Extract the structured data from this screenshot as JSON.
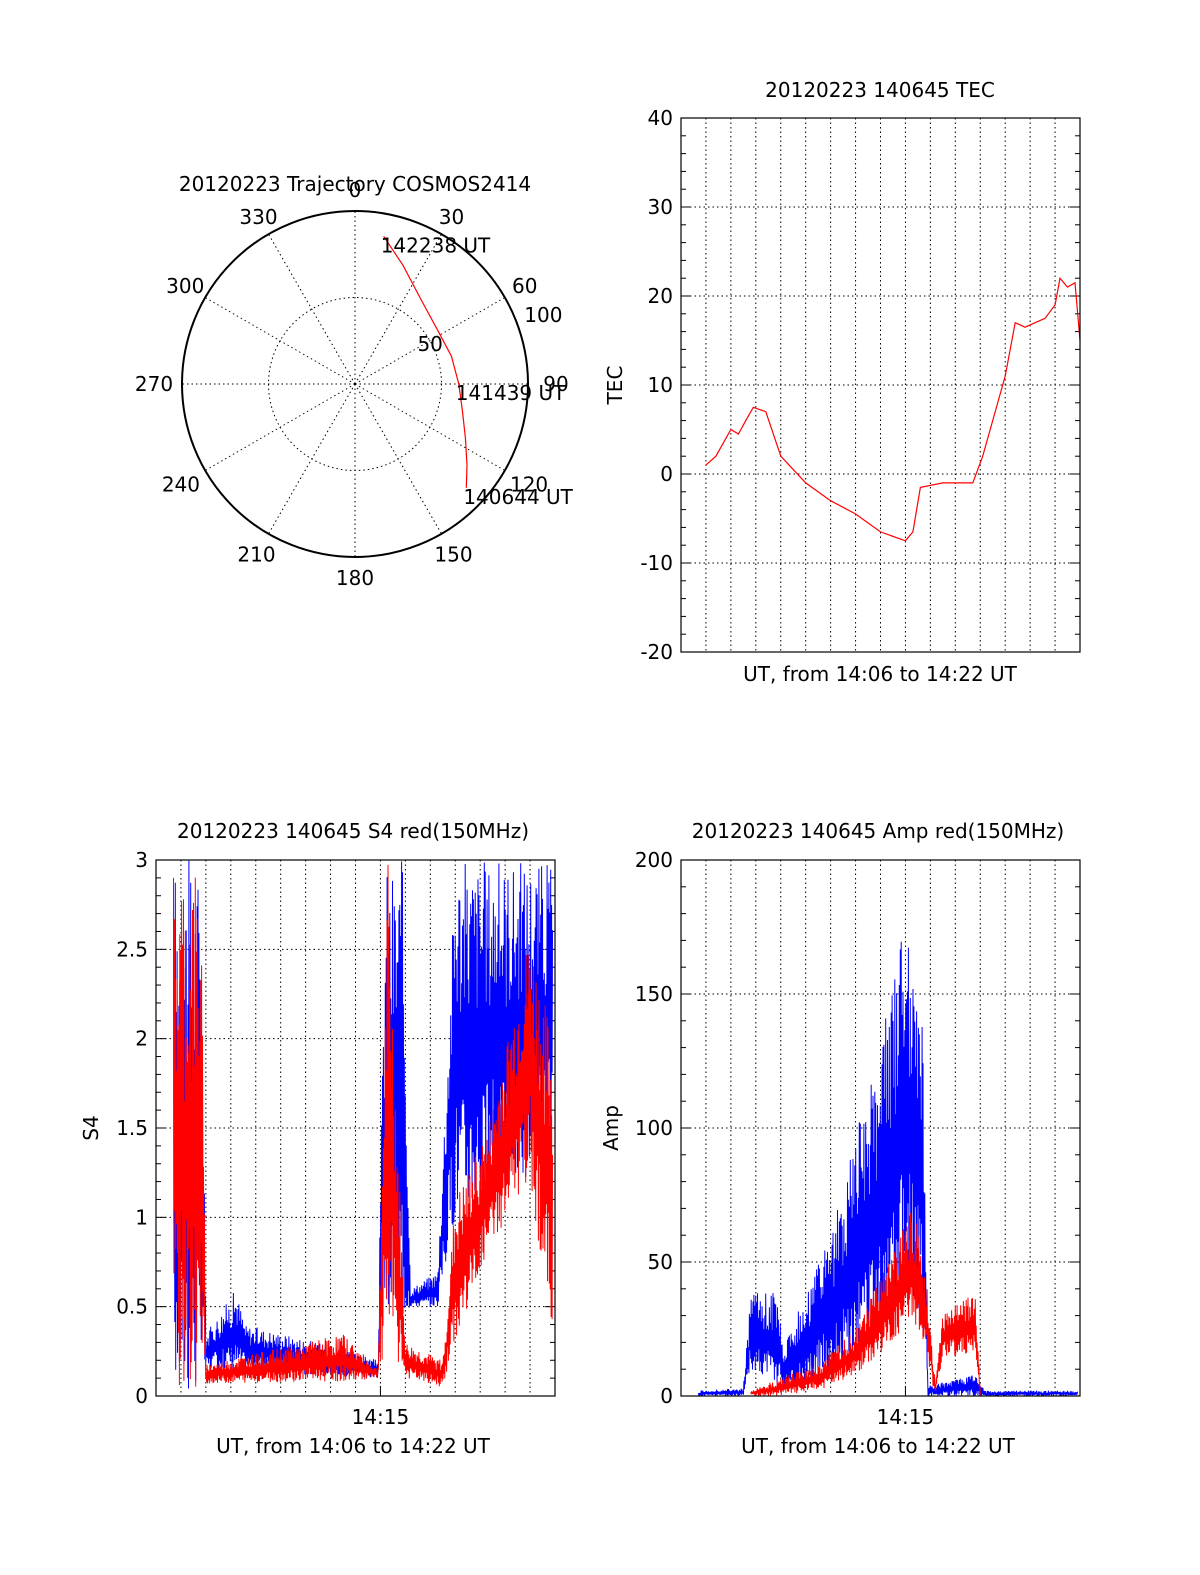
{
  "chart_data": [
    {
      "id": "trajectory",
      "type": "polar",
      "title": "20120223 Trajectory COSMOS2414",
      "azimuth_labels": [
        "0",
        "30",
        "60",
        "90",
        "120",
        "150",
        "180",
        "210",
        "240",
        "270",
        "300",
        "330"
      ],
      "radius_labels": [
        "50",
        "100"
      ],
      "series": [
        {
          "color": "#ff0000",
          "points": [
            {
              "az": 11,
              "r": 87
            },
            {
              "az": 22,
              "r": 74
            },
            {
              "az": 38,
              "r": 62
            },
            {
              "az": 57,
              "r": 57
            },
            {
              "az": 74,
              "r": 58
            },
            {
              "az": 90,
              "r": 60
            },
            {
              "az": 104,
              "r": 64
            },
            {
              "az": 116,
              "r": 71
            },
            {
              "az": 126,
              "r": 80
            },
            {
              "az": 133,
              "r": 88
            }
          ]
        }
      ],
      "annotations": [
        {
          "text": "142238 UT",
          "az": 11,
          "r": 87
        },
        {
          "text": "141439 UT",
          "az": 90,
          "r": 60
        },
        {
          "text": "140644 UT",
          "az": 133,
          "r": 88
        }
      ]
    },
    {
      "id": "tec",
      "type": "line",
      "title": "20120223 140645 TEC",
      "ylabel": "TEC",
      "xlabel": "UT, from 14:06 to 14:22 UT",
      "xlim": [
        0,
        16
      ],
      "ylim": [
        -20,
        40
      ],
      "yticks": [
        "-20",
        "-10",
        "0",
        "10",
        "20",
        "30",
        "40"
      ],
      "series": [
        {
          "color": "#ff0000",
          "x": [
            1,
            1.4,
            1.6,
            2.0,
            2.3,
            2.6,
            2.9,
            3.4,
            4.0,
            5.0,
            6.0,
            7.0,
            8.0,
            9.0,
            9.3,
            9.6,
            10.5,
            11.0,
            11.7,
            12.1,
            12.5,
            13.0,
            13.4,
            13.8,
            14.2,
            14.6,
            15.0,
            15.2,
            15.5,
            15.8,
            16.0
          ],
          "y": [
            1,
            2,
            3,
            5,
            4.5,
            6,
            7.5,
            7,
            2,
            -1,
            -3,
            -4.5,
            -6.5,
            -7.5,
            -6.5,
            -1.5,
            -1,
            -1,
            -1,
            2,
            6,
            11,
            17,
            16.5,
            17,
            17.5,
            19,
            22,
            21,
            21.5,
            15
          ]
        }
      ]
    },
    {
      "id": "s4",
      "type": "line",
      "title": "20120223 140645 S4 red(150MHz)",
      "ylabel": "S4",
      "xlabel": "UT, from 14:06 to 14:22 UT",
      "xlim": [
        0,
        16
      ],
      "ylim": [
        0,
        3
      ],
      "yticks": [
        "0",
        "0.5",
        "1",
        "1.5",
        "2",
        "2.5",
        "3"
      ],
      "xticks": [
        {
          "x": 9,
          "label": "14:15"
        }
      ],
      "series": [
        {
          "color": "#0000ff",
          "envelope": [
            {
              "x": 0.7,
              "lo": 0,
              "hi": 3
            },
            {
              "x": 1.8,
              "lo": 0,
              "hi": 3
            },
            {
              "x": 2.0,
              "lo": 0.15,
              "hi": 0.35
            },
            {
              "x": 3.2,
              "lo": 0.15,
              "hi": 0.6
            },
            {
              "x": 3.6,
              "lo": 0.15,
              "hi": 0.4
            },
            {
              "x": 6.0,
              "lo": 0.12,
              "hi": 0.32
            },
            {
              "x": 8.9,
              "lo": 0.1,
              "hi": 0.2
            },
            {
              "x": 9.2,
              "lo": 0.4,
              "hi": 3
            },
            {
              "x": 9.9,
              "lo": 0.4,
              "hi": 3
            },
            {
              "x": 10.2,
              "lo": 0.5,
              "hi": 0.6
            },
            {
              "x": 11.3,
              "lo": 0.5,
              "hi": 0.7
            },
            {
              "x": 12.0,
              "lo": 1.0,
              "hi": 3
            },
            {
              "x": 15.9,
              "lo": 1.3,
              "hi": 3
            }
          ]
        },
        {
          "color": "#ff0000",
          "envelope": [
            {
              "x": 0.7,
              "lo": 0,
              "hi": 3
            },
            {
              "x": 1.8,
              "lo": 0,
              "hi": 3
            },
            {
              "x": 2.0,
              "lo": 0.07,
              "hi": 0.18
            },
            {
              "x": 6.0,
              "lo": 0.08,
              "hi": 0.3
            },
            {
              "x": 7.5,
              "lo": 0.08,
              "hi": 0.35
            },
            {
              "x": 8.9,
              "lo": 0.1,
              "hi": 0.15
            },
            {
              "x": 9.3,
              "lo": 0.3,
              "hi": 3
            },
            {
              "x": 10.0,
              "lo": 0.1,
              "hi": 0.3
            },
            {
              "x": 11.5,
              "lo": 0.05,
              "hi": 0.2
            },
            {
              "x": 12.0,
              "lo": 0.3,
              "hi": 1.1
            },
            {
              "x": 13.3,
              "lo": 0.8,
              "hi": 1.5
            },
            {
              "x": 15.0,
              "lo": 1.2,
              "hi": 2.6
            },
            {
              "x": 15.9,
              "lo": 0.3,
              "hi": 2.0
            }
          ]
        }
      ]
    },
    {
      "id": "amp",
      "type": "line",
      "title": "20120223 140645 Amp red(150MHz)",
      "ylabel": "Amp",
      "xlabel": "UT, from 14:06 to 14:22 UT",
      "xlim": [
        0,
        16
      ],
      "ylim": [
        0,
        200
      ],
      "yticks": [
        "0",
        "50",
        "100",
        "150",
        "200"
      ],
      "xticks": [
        {
          "x": 9,
          "label": "14:15"
        }
      ],
      "series": [
        {
          "color": "#0000ff",
          "envelope": [
            {
              "x": 0.7,
              "lo": 0,
              "hi": 2
            },
            {
              "x": 2.5,
              "lo": 0,
              "hi": 3
            },
            {
              "x": 2.8,
              "lo": 10,
              "hi": 38
            },
            {
              "x": 3.8,
              "lo": 5,
              "hi": 40
            },
            {
              "x": 4.1,
              "lo": 2,
              "hi": 20
            },
            {
              "x": 6.0,
              "lo": 8,
              "hi": 60
            },
            {
              "x": 7.5,
              "lo": 15,
              "hi": 115
            },
            {
              "x": 8.5,
              "lo": 30,
              "hi": 155
            },
            {
              "x": 9.0,
              "lo": 40,
              "hi": 180
            },
            {
              "x": 9.7,
              "lo": 30,
              "hi": 145
            },
            {
              "x": 9.9,
              "lo": 0,
              "hi": 4
            },
            {
              "x": 11.8,
              "lo": 0,
              "hi": 8
            },
            {
              "x": 12.2,
              "lo": 0,
              "hi": 2
            },
            {
              "x": 15.9,
              "lo": 0,
              "hi": 2
            }
          ]
        },
        {
          "color": "#ff0000",
          "envelope": [
            {
              "x": 2.8,
              "lo": 0,
              "hi": 2
            },
            {
              "x": 3.8,
              "lo": 0,
              "hi": 6
            },
            {
              "x": 5.5,
              "lo": 2,
              "hi": 12
            },
            {
              "x": 7.0,
              "lo": 8,
              "hi": 25
            },
            {
              "x": 8.5,
              "lo": 20,
              "hi": 55
            },
            {
              "x": 9.3,
              "lo": 30,
              "hi": 70
            },
            {
              "x": 9.8,
              "lo": 15,
              "hi": 50
            },
            {
              "x": 10.2,
              "lo": 0,
              "hi": 5
            },
            {
              "x": 10.5,
              "lo": 15,
              "hi": 30
            },
            {
              "x": 11.8,
              "lo": 15,
              "hi": 40
            },
            {
              "x": 12.0,
              "lo": 0,
              "hi": 2
            }
          ]
        }
      ]
    }
  ]
}
